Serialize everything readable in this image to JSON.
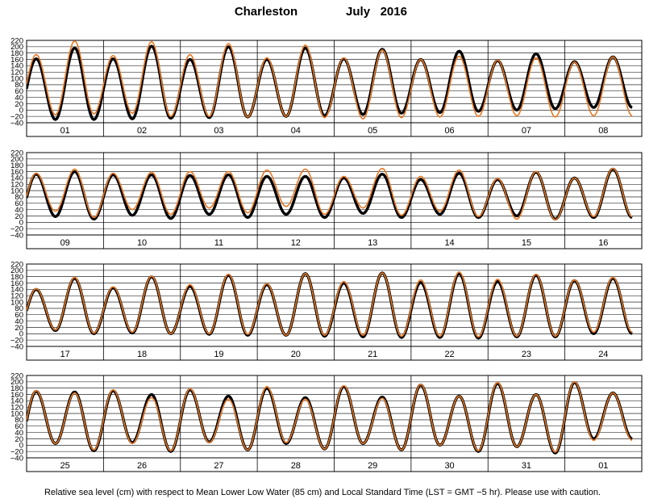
{
  "title": {
    "station": "Charleston",
    "month_year": "July   2016"
  },
  "footer": "Relative sea level (cm) with respect to Mean Lower Low Water (85 cm) and Local Standard Time (LST = GMT −5 hr). Please use with caution.",
  "colors": {
    "observed": "#000000",
    "predicted": "#e87722",
    "grid": "#000000",
    "background": "#ffffff"
  },
  "chart_data": {
    "type": "line",
    "units": "cm",
    "datum": "MLLW",
    "ylim": [
      -40,
      220
    ],
    "yticks": [
      -40,
      -20,
      0,
      20,
      40,
      60,
      80,
      100,
      120,
      140,
      160,
      180,
      200,
      220
    ],
    "x_unit": "day",
    "days_per_panel": 8,
    "grid": true,
    "series": [
      {
        "key": "observed",
        "color": "#000000",
        "stroke_weight": "bold"
      },
      {
        "key": "predicted",
        "color": "#e87722",
        "stroke_weight": "thin"
      }
    ],
    "panels": [
      {
        "day_labels": [
          "01",
          "02",
          "03",
          "04",
          "05",
          "06",
          "07",
          "08"
        ],
        "obs_highs": [
          162,
          196,
          162,
          202,
          160,
          200,
          160,
          196,
          162,
          192,
          160,
          186,
          156,
          178,
          153,
          168
        ],
        "obs_lows": [
          -28,
          -30,
          -30,
          -28,
          -26,
          -24,
          -22,
          -20,
          -18,
          -14,
          -10,
          -8,
          -4,
          0,
          4,
          8
        ],
        "pred_highs": [
          175,
          218,
          172,
          216,
          175,
          210,
          165,
          205,
          165,
          190,
          160,
          170,
          158,
          165,
          152,
          168
        ],
        "pred_lows": [
          -10,
          -15,
          -12,
          -10,
          -20,
          -20,
          -22,
          -20,
          -24,
          -28,
          -24,
          -22,
          -20,
          -18,
          -22,
          -18
        ]
      },
      {
        "day_labels": [
          "09",
          "10",
          "11",
          "12",
          "13",
          "14",
          "15",
          "16"
        ],
        "obs_highs": [
          152,
          160,
          150,
          150,
          148,
          150,
          145,
          145,
          140,
          152,
          135,
          155,
          135,
          158,
          140,
          168
        ],
        "obs_lows": [
          2,
          18,
          10,
          22,
          12,
          25,
          15,
          25,
          15,
          28,
          15,
          25,
          15,
          20,
          10,
          15
        ],
        "pred_highs": [
          155,
          168,
          155,
          158,
          160,
          160,
          165,
          168,
          145,
          170,
          145,
          165,
          138,
          160,
          140,
          170
        ],
        "pred_lows": [
          8,
          35,
          15,
          40,
          25,
          45,
          30,
          50,
          25,
          45,
          22,
          35,
          18,
          10,
          8,
          18
        ]
      },
      {
        "day_labels": [
          "17",
          "18",
          "19",
          "20",
          "21",
          "22",
          "23",
          "24"
        ],
        "obs_highs": [
          140,
          175,
          145,
          180,
          150,
          185,
          155,
          190,
          160,
          192,
          162,
          190,
          165,
          185,
          168,
          175
        ],
        "obs_lows": [
          5,
          10,
          0,
          2,
          0,
          -2,
          -5,
          -5,
          -8,
          -10,
          -12,
          -12,
          -14,
          -10,
          -10,
          0
        ],
        "pred_highs": [
          142,
          178,
          148,
          182,
          155,
          188,
          158,
          190,
          165,
          192,
          170,
          195,
          172,
          188,
          170,
          178
        ],
        "pred_lows": [
          5,
          12,
          2,
          5,
          0,
          0,
          -2,
          -5,
          -5,
          -5,
          -8,
          -8,
          -10,
          -8,
          -8,
          5
        ]
      },
      {
        "day_labels": [
          "25",
          "26",
          "27",
          "28",
          "29",
          "30",
          "31",
          "01"
        ],
        "obs_highs": [
          170,
          168,
          172,
          160,
          175,
          155,
          180,
          150,
          185,
          152,
          190,
          155,
          195,
          160,
          198,
          165
        ],
        "obs_lows": [
          -18,
          5,
          -18,
          8,
          -20,
          10,
          -15,
          5,
          -12,
          5,
          -15,
          0,
          -20,
          -5,
          -25,
          20
        ],
        "pred_highs": [
          172,
          165,
          175,
          150,
          178,
          145,
          185,
          145,
          188,
          148,
          192,
          155,
          198,
          160,
          200,
          165
        ],
        "pred_lows": [
          -15,
          5,
          -15,
          5,
          -18,
          8,
          -15,
          8,
          -12,
          5,
          -15,
          0,
          -18,
          -5,
          -22,
          15
        ]
      }
    ]
  }
}
